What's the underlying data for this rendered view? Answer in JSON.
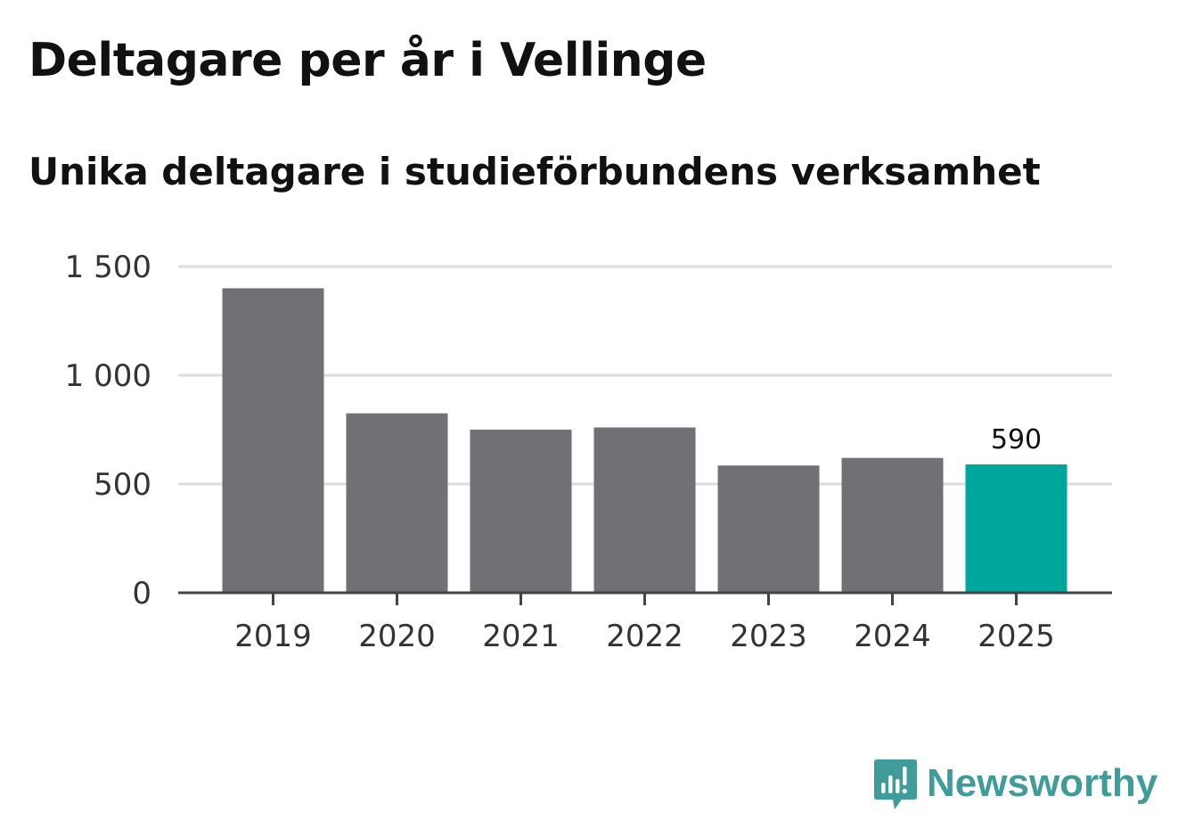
{
  "header": {
    "title": "Deltagare per år i Vellinge",
    "subtitle": "Unika deltagare i studieförbundens verksamhet"
  },
  "chart_data": {
    "type": "bar",
    "title": "Deltagare per år i Vellinge",
    "subtitle": "Unika deltagare i studieförbundens verksamhet",
    "xlabel": "",
    "ylabel": "",
    "categories": [
      "2019",
      "2020",
      "2021",
      "2022",
      "2023",
      "2024",
      "2025"
    ],
    "values": [
      1400,
      825,
      750,
      760,
      585,
      620,
      590
    ],
    "ylim": [
      0,
      1500
    ],
    "yticks": [
      0,
      500,
      1000,
      1500
    ],
    "ytick_labels": [
      "0",
      "500",
      "1 000",
      "1 500"
    ],
    "grid": true,
    "highlight_index": 6,
    "data_labels": [
      {
        "index": 6,
        "text": "590"
      }
    ],
    "colors": {
      "bar": "#707075",
      "highlight": "#00a59b",
      "grid": "#dddddd",
      "axis": "#444444",
      "tick_text": "#333333"
    }
  },
  "brand": {
    "name": "Newsworthy",
    "icon": "newsworthy-logo-icon",
    "color": "#3f9c98"
  }
}
